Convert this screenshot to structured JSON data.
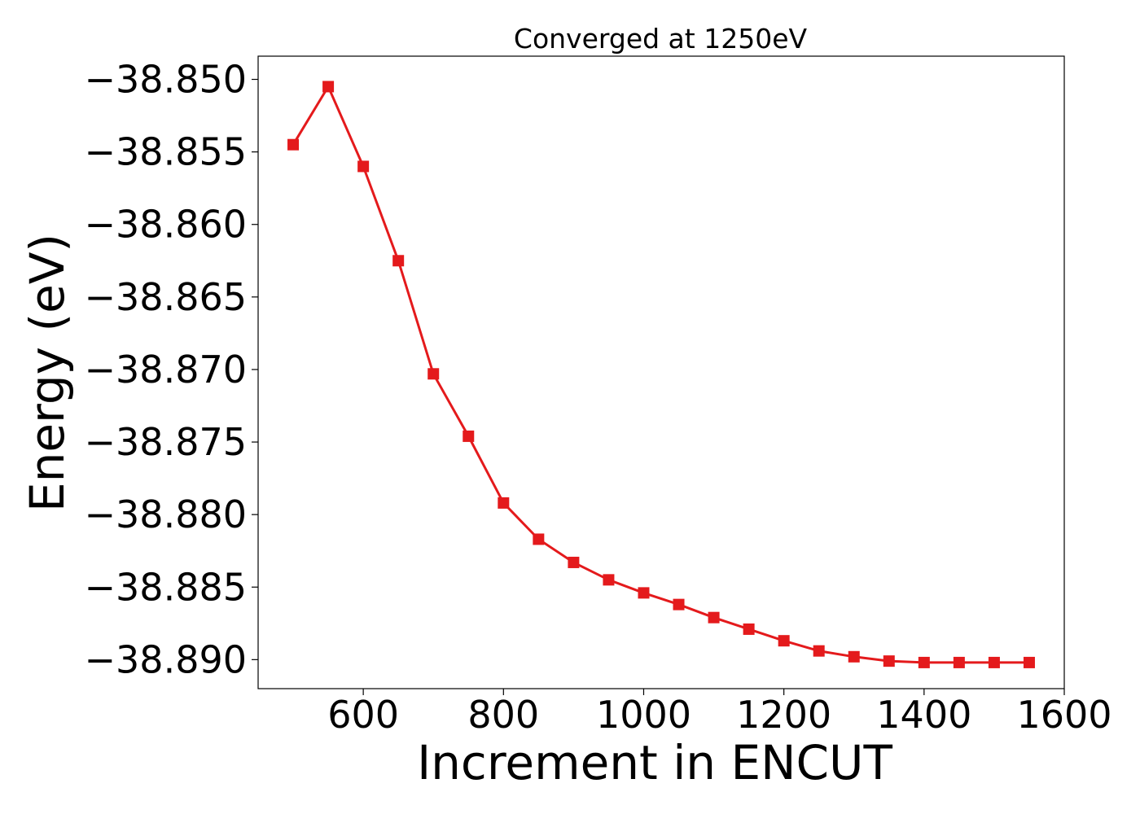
{
  "chart_data": {
    "type": "line",
    "title": "Converged at 1250eV",
    "xlabel": "Increment in ENCUT",
    "ylabel": "Energy (eV)",
    "xlim": [
      450,
      1600
    ],
    "ylim": [
      -38.892,
      -38.8484
    ],
    "x_ticks": [
      600,
      800,
      1000,
      1200,
      1400,
      1600
    ],
    "x_tick_labels": [
      "600",
      "800",
      "1000",
      "1200",
      "1400",
      "1600"
    ],
    "y_ticks": [
      -38.85,
      -38.855,
      -38.86,
      -38.865,
      -38.87,
      -38.875,
      -38.88,
      -38.885,
      -38.89
    ],
    "y_tick_labels": [
      "−38.850",
      "−38.855",
      "−38.860",
      "−38.865",
      "−38.870",
      "−38.875",
      "−38.880",
      "−38.885",
      "−38.890"
    ],
    "grid": false,
    "marker": "square",
    "color": "#e41a1c",
    "series": [
      {
        "x": [
          500,
          550,
          600,
          650,
          700,
          750,
          800,
          850,
          900,
          950,
          1000,
          1050,
          1100,
          1150,
          1200,
          1250,
          1300,
          1350,
          1400,
          1450,
          1500,
          1550
        ],
        "y": [
          -38.8545,
          -38.8505,
          -38.856,
          -38.8625,
          -38.8703,
          -38.8746,
          -38.8792,
          -38.8817,
          -38.8833,
          -38.8845,
          -38.8854,
          -38.8862,
          -38.8871,
          -38.8879,
          -38.8887,
          -38.8894,
          -38.8898,
          -38.8901,
          -38.8902,
          -38.8902,
          -38.8902,
          -38.8902
        ]
      }
    ]
  }
}
